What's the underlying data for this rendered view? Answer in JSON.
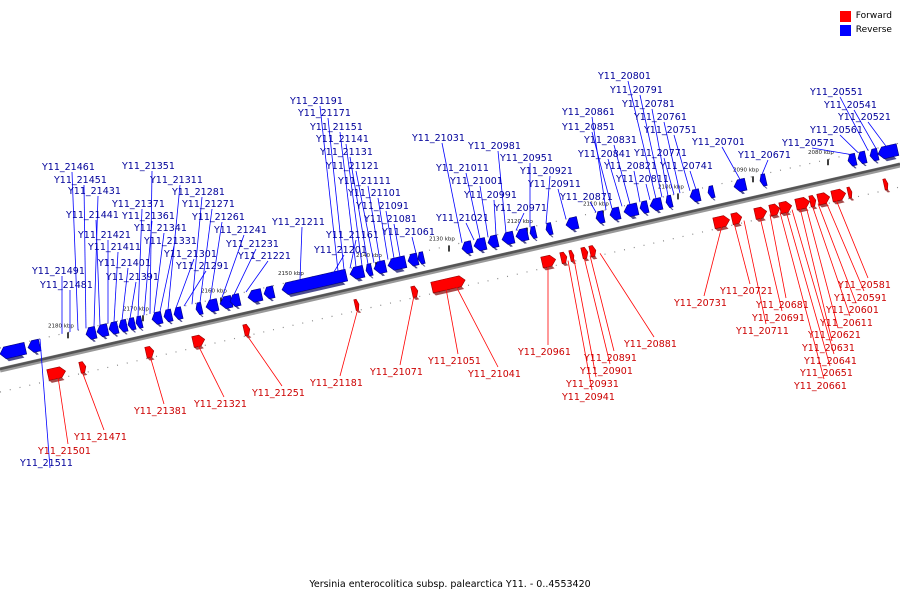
{
  "colors": {
    "forward": "#ff0000",
    "reverse": "#0000ff",
    "forward_label": "#cc0000",
    "reverse_label": "#00009a",
    "backbone": "#555555"
  },
  "legend": {
    "forward": "Forward",
    "reverse": "Reverse"
  },
  "caption": "Yersinia enterocolitica subsp. palearctica Y11. - 0..4553420",
  "ticks": [
    "2180 kbp",
    "2170 kbp",
    "2160 kbp",
    "2150 kbp",
    "2140 kbp",
    "2130 kbp",
    "2120 kbp",
    "2110 kbp",
    "2100 kbp",
    "2090 kbp",
    "2080 kbp"
  ],
  "reverse_labels": [
    "Y11_21511",
    "Y11_21491",
    "Y11_21481",
    "Y11_21461",
    "Y11_21451",
    "Y11_21431",
    "Y11_21441",
    "Y11_21421",
    "Y11_21411",
    "Y11_21401",
    "Y11_21391",
    "Y11_21371",
    "Y11_21361",
    "Y11_21351",
    "Y11_21341",
    "Y11_21331",
    "Y11_21311",
    "Y11_21301",
    "Y11_21291",
    "Y11_21281",
    "Y11_21271",
    "Y11_21261",
    "Y11_21241",
    "Y11_21231",
    "Y11_21221",
    "Y11_21211",
    "Y11_21201",
    "Y11_21191",
    "Y11_21171",
    "Y11_21161",
    "Y11_21151",
    "Y11_21141",
    "Y11_21131",
    "Y11_21121",
    "Y11_21111",
    "Y11_21101",
    "Y11_21091",
    "Y11_21081",
    "Y11_21061",
    "Y11_21031",
    "Y11_21021",
    "Y11_21011",
    "Y11_21001",
    "Y11_20991",
    "Y11_20981",
    "Y11_20971",
    "Y11_20951",
    "Y11_20921",
    "Y11_20911",
    "Y11_20871",
    "Y11_20861",
    "Y11_20851",
    "Y11_20841",
    "Y11_20831",
    "Y11_20821",
    "Y11_20811",
    "Y11_20801",
    "Y11_20791",
    "Y11_20781",
    "Y11_20771",
    "Y11_20761",
    "Y11_20751",
    "Y11_20741",
    "Y11_20701",
    "Y11_20671",
    "Y11_20571",
    "Y11_20561",
    "Y11_20551",
    "Y11_20541",
    "Y11_20521"
  ],
  "forward_labels": [
    "Y11_21501",
    "Y11_21471",
    "Y11_21381",
    "Y11_21321",
    "Y11_21251",
    "Y11_21181",
    "Y11_21071",
    "Y11_21051",
    "Y11_21041",
    "Y11_20961",
    "Y11_20941",
    "Y11_20931",
    "Y11_20901",
    "Y11_20891",
    "Y11_20881",
    "Y11_20731",
    "Y11_20721",
    "Y11_20711",
    "Y11_20691",
    "Y11_20681",
    "Y11_20661",
    "Y11_20651",
    "Y11_20641",
    "Y11_20631",
    "Y11_20621",
    "Y11_20611",
    "Y11_20601",
    "Y11_20591",
    "Y11_20581"
  ]
}
